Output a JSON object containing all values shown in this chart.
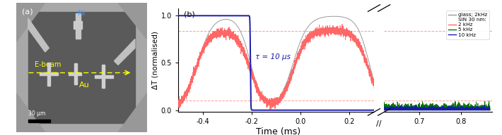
{
  "panel_a_label": "(a)",
  "panel_b_label": "(b)",
  "ni_label": "Ni",
  "au_label": "Au",
  "ebeam_label": "E-beam",
  "scalebar_label": "30 μm",
  "tau_label": "τ = 10 μs",
  "ylabel": "ΔT (normalised)",
  "xlabel": "Time (ms)",
  "legend_entries": [
    "glass; 2kHz",
    "SiN 30 nm:",
    "2 kHz",
    "5 kHz",
    "10 kHz"
  ],
  "legend_colors": [
    "#aaaaaa",
    null,
    "#ff8888",
    "#00aa00",
    "#1111cc"
  ],
  "dashed_line_color": "#ff8888",
  "dashed_line_level_high": 0.84,
  "dashed_line_level_low": 0.1,
  "ylim": [
    -0.02,
    1.08
  ],
  "gray_color": "#999999",
  "red_color": "#ff6666",
  "blue_color": "#1a1aaa",
  "green_color": "#007700",
  "sem_bg_outer": "#a0a0a0",
  "sem_bg_inner": "#606060",
  "sem_electrode_color": "#d0d0d0",
  "sem_label_color": "#ffffff"
}
